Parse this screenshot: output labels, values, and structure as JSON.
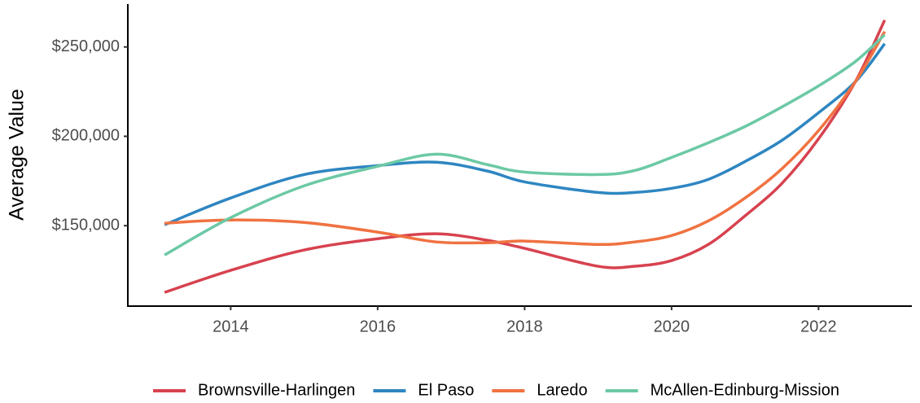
{
  "chart_data": {
    "type": "line",
    "y_label": "Average Value",
    "x": [
      2013.1,
      2014,
      2015,
      2016,
      2016.8,
      2017.5,
      2018,
      2019,
      2019.5,
      2020,
      2020.5,
      2021,
      2021.5,
      2022,
      2022.5,
      2022.9
    ],
    "series": [
      {
        "name": "Brownsville-Harlingen",
        "color": "#d7424f",
        "values": [
          112700,
          125000,
          136400,
          142700,
          145500,
          141800,
          137300,
          127300,
          127300,
          130500,
          139500,
          155500,
          173600,
          198600,
          230500,
          265000
        ]
      },
      {
        "name": "El Paso",
        "color": "#2e86c1",
        "values": [
          150500,
          165500,
          178600,
          183600,
          185500,
          180500,
          174500,
          168600,
          168600,
          170900,
          175900,
          185900,
          197700,
          213200,
          230500,
          251800
        ]
      },
      {
        "name": "Laredo",
        "color": "#f07241",
        "values": [
          151400,
          153200,
          151800,
          146400,
          140900,
          140500,
          141400,
          139500,
          140900,
          144500,
          152700,
          165500,
          181800,
          203200,
          230500,
          258600
        ]
      },
      {
        "name": "McAllen-Edinburg-Mission",
        "color": "#6cc9a5",
        "values": [
          133600,
          154500,
          172300,
          183200,
          190000,
          184100,
          180000,
          178600,
          180900,
          188200,
          196400,
          205500,
          216400,
          228200,
          241800,
          256800
        ]
      }
    ],
    "xlim": [
      2012.6,
      2023.27
    ],
    "xticks": [
      2014,
      2016,
      2018,
      2020,
      2022
    ],
    "ylim": [
      105000,
      274000
    ],
    "yticks": [
      {
        "value": 150000,
        "label": "$150,000"
      },
      {
        "value": 200000,
        "label": "$200,000"
      },
      {
        "value": 250000,
        "label": "$250,000"
      }
    ],
    "grid": false,
    "legend": "bottom"
  }
}
